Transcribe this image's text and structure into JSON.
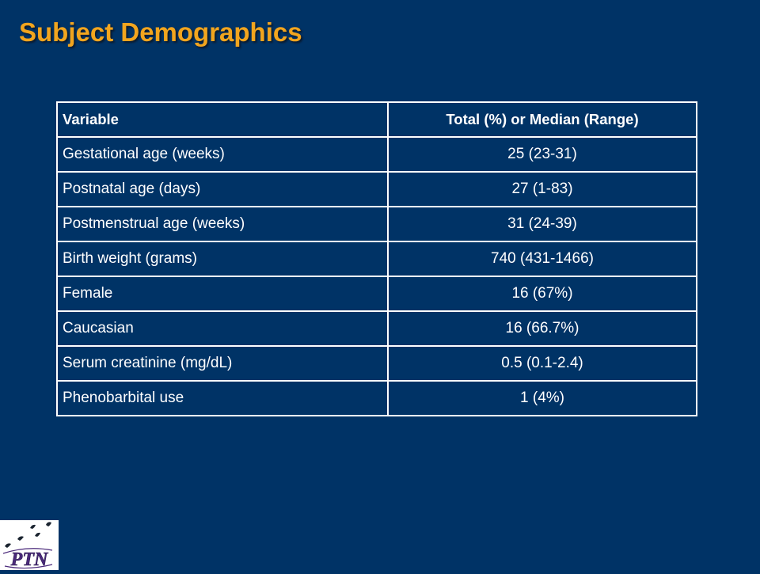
{
  "slide": {
    "title": "Subject Demographics"
  },
  "table": {
    "headers": [
      "Variable",
      "Total (%) or Median (Range)"
    ],
    "rows": [
      [
        "Gestational age (weeks)",
        "25 (23-31)"
      ],
      [
        "Postnatal age (days)",
        "27 (1-83)"
      ],
      [
        "Postmenstrual age (weeks)",
        "31 (24-39)"
      ],
      [
        "Birth weight (grams)",
        "740 (431-1466)"
      ],
      [
        "Female",
        "16 (67%)"
      ],
      [
        "Caucasian",
        "16 (66.7%)"
      ],
      [
        "Serum creatinine (mg/dL)",
        "0.5 (0.1-2.4)"
      ],
      [
        "Phenobarbital use",
        "1 (4%)"
      ]
    ]
  },
  "logo": {
    "text": "PTN",
    "colors": {
      "background": "#ffffff",
      "letters": "#4b2a7b",
      "icons": "#1b2430"
    }
  },
  "theme": {
    "background": "#003366",
    "title_color": "#f2a51e",
    "text_color": "#ffffff"
  }
}
